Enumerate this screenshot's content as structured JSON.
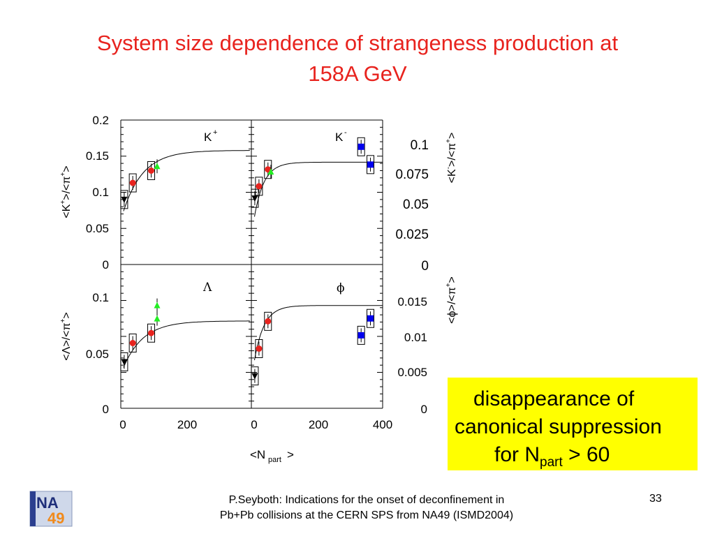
{
  "slide": {
    "title_line1": "System size dependence of strangeness production at",
    "title_line2": "158A GeV",
    "footer_line1": "P.Seyboth: Indications for the onset of deconfinement in",
    "footer_line2": "Pb+Pb collisions at the CERN SPS from NA49   (ISMD2004)",
    "page_number": "33",
    "logo_text_top": "NA",
    "logo_text_bottom": "49"
  },
  "callout": {
    "line1": "disappearance of",
    "line2": "canonical suppression",
    "line3_prefix": "for N",
    "line3_sub": "part",
    "line3_suffix": " > 60",
    "background": "#ffff00"
  },
  "colors": {
    "title": "#e8231e",
    "red_marker": "#e8231e",
    "green_marker": "#22ee22",
    "blue_marker": "#0000ee",
    "black_marker": "#000000"
  },
  "chart_data": [
    {
      "type": "scatter",
      "panel": "top-left",
      "label": "K+",
      "ylabel": "<K+>/<π+>",
      "xlim": [
        0,
        400
      ],
      "ylim": [
        0,
        0.2
      ],
      "yticks": [
        "0",
        "0.05",
        "0.1",
        "0.15",
        "0.2"
      ],
      "xticks": [],
      "series": [
        {
          "marker": "triangle-down",
          "color": "black",
          "points": [
            {
              "x": 2,
              "y": 0.09
            }
          ]
        },
        {
          "marker": "circle",
          "color": "red",
          "points": [
            {
              "x": 15,
              "y": 0.113
            },
            {
              "x": 43,
              "y": 0.13
            }
          ]
        },
        {
          "marker": "triangle-up",
          "color": "green",
          "points": [
            {
              "x": 52,
              "y": 0.136
            }
          ]
        },
        {
          "marker": "square",
          "color": "blue",
          "points": [
            {
              "x": 362,
              "y": 0.163
            }
          ]
        }
      ],
      "curve_plateau": 0.158
    },
    {
      "type": "scatter",
      "panel": "top-right",
      "label": "K-",
      "ylabel": "<K->/<π->",
      "xlim": [
        0,
        400
      ],
      "ylim": [
        0,
        0.12
      ],
      "yticks": [
        "0",
        "0.025",
        "0.05",
        "0.075",
        "0.1"
      ],
      "xticks": [],
      "series": [
        {
          "marker": "triangle-down",
          "color": "black",
          "points": [
            {
              "x": 2,
              "y": 0.055
            }
          ]
        },
        {
          "marker": "circle",
          "color": "red",
          "points": [
            {
              "x": 15,
              "y": 0.065
            },
            {
              "x": 43,
              "y": 0.079
            }
          ]
        },
        {
          "marker": "triangle-up",
          "color": "green",
          "points": [
            {
              "x": 52,
              "y": 0.077
            }
          ]
        },
        {
          "marker": "square",
          "color": "blue",
          "points": [
            {
              "x": 362,
              "y": 0.083
            }
          ]
        }
      ],
      "curve_plateau": 0.085
    },
    {
      "type": "scatter",
      "panel": "bottom-left",
      "label": "Λ",
      "ylabel": "<Λ>/<π>",
      "xlim": [
        0,
        400
      ],
      "ylim": [
        0,
        0.13
      ],
      "yticks": [
        "0",
        "0.05",
        "0.1"
      ],
      "xticks": [
        "0",
        "200"
      ],
      "series": [
        {
          "marker": "triangle-down",
          "color": "black",
          "points": [
            {
              "x": 2,
              "y": 0.042
            }
          ]
        },
        {
          "marker": "circle",
          "color": "red",
          "points": [
            {
              "x": 15,
              "y": 0.059
            },
            {
              "x": 43,
              "y": 0.068
            }
          ]
        },
        {
          "marker": "triangle-up",
          "color": "green",
          "points": [
            {
              "x": 52,
              "y": 0.081
            },
            {
              "x": 52,
              "y": 0.093
            }
          ]
        },
        {
          "marker": "square",
          "color": "blue",
          "points": [
            {
              "x": 362,
              "y": 0.066
            }
          ]
        }
      ],
      "curve_plateau": 0.079
    },
    {
      "type": "scatter",
      "panel": "bottom-right",
      "label": "φ",
      "ylabel": "<φ>/<π>",
      "xlim": [
        0,
        400
      ],
      "ylim": [
        0,
        0.02
      ],
      "yticks": [
        "0",
        "0.005",
        "0.01",
        "0.015"
      ],
      "xticks": [
        "0",
        "200",
        "400"
      ],
      "xlabel": "<Npart>",
      "series": [
        {
          "marker": "triangle-down",
          "color": "black",
          "points": [
            {
              "x": 2,
              "y": 0.0045
            }
          ]
        },
        {
          "marker": "circle",
          "color": "red",
          "points": [
            {
              "x": 15,
              "y": 0.0083
            },
            {
              "x": 43,
              "y": 0.0121
            }
          ]
        },
        {
          "marker": "square",
          "color": "blue",
          "points": [
            {
              "x": 362,
              "y": 0.0125
            }
          ]
        }
      ],
      "curve_plateau": 0.0143
    }
  ]
}
